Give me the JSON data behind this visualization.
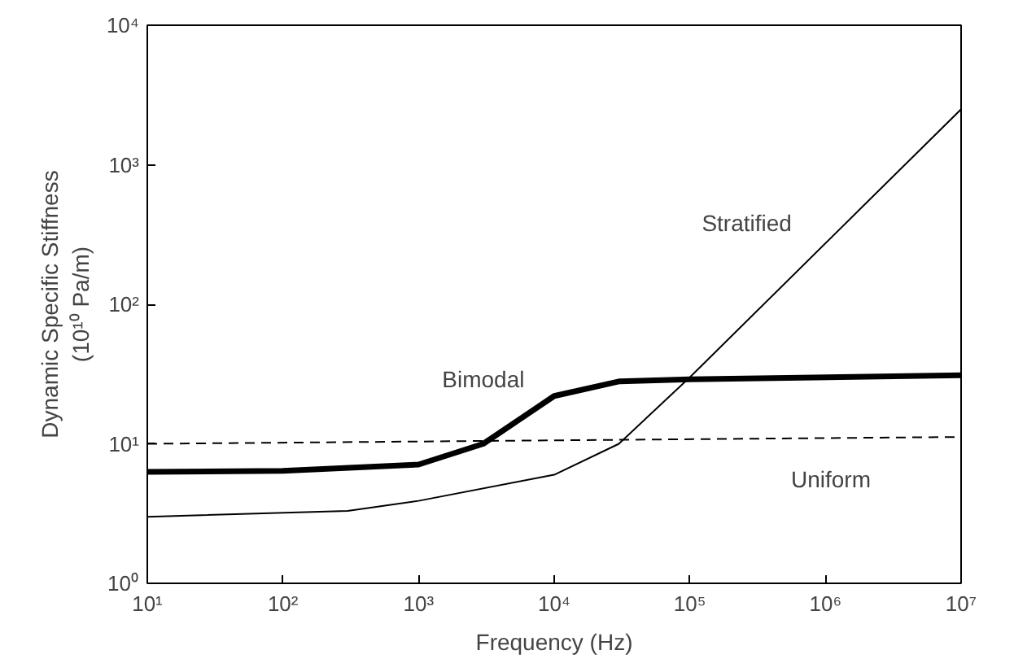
{
  "chart_data": {
    "type": "line",
    "xlabel": "Frequency (Hz)",
    "ylabel": "Dynamic Specific Stiffness\n(10¹⁰ Pa/m)",
    "log": "xy",
    "grid": false,
    "legend": false,
    "xlim": [
      10,
      10000000
    ],
    "ylim": [
      1,
      10000
    ],
    "xticks": [
      {
        "value": 10,
        "label": "10¹"
      },
      {
        "value": 100,
        "label": "10²"
      },
      {
        "value": 1000,
        "label": "10³"
      },
      {
        "value": 10000,
        "label": "10⁴"
      },
      {
        "value": 100000,
        "label": "10⁵"
      },
      {
        "value": 1000000,
        "label": "10⁶"
      },
      {
        "value": 10000000,
        "label": "10⁷"
      }
    ],
    "yticks": [
      {
        "value": 1,
        "label": "10⁰"
      },
      {
        "value": 10,
        "label": "10¹"
      },
      {
        "value": 100,
        "label": "10²"
      },
      {
        "value": 1000,
        "label": "10³"
      },
      {
        "value": 10000,
        "label": "10⁴"
      }
    ],
    "series": [
      {
        "name": "Bimodal",
        "color": "#000000",
        "line_style": "solid",
        "x": [
          10,
          100,
          1000,
          3000,
          10000,
          30000,
          100000,
          10000000
        ],
        "values": [
          6.3,
          6.4,
          7.1,
          10,
          22,
          28,
          29,
          31
        ]
      },
      {
        "name": "Uniform",
        "color": "#000000",
        "line_style": "dashed",
        "x": [
          10,
          10000000
        ],
        "values": [
          10,
          11.2
        ]
      },
      {
        "name": "Stratified",
        "color": "#000000",
        "line_style": "solid",
        "x": [
          10,
          300,
          1000,
          10000,
          30000,
          100000,
          10000000
        ],
        "values": [
          3,
          3.3,
          3.9,
          6,
          10,
          30,
          2500
        ]
      }
    ]
  }
}
